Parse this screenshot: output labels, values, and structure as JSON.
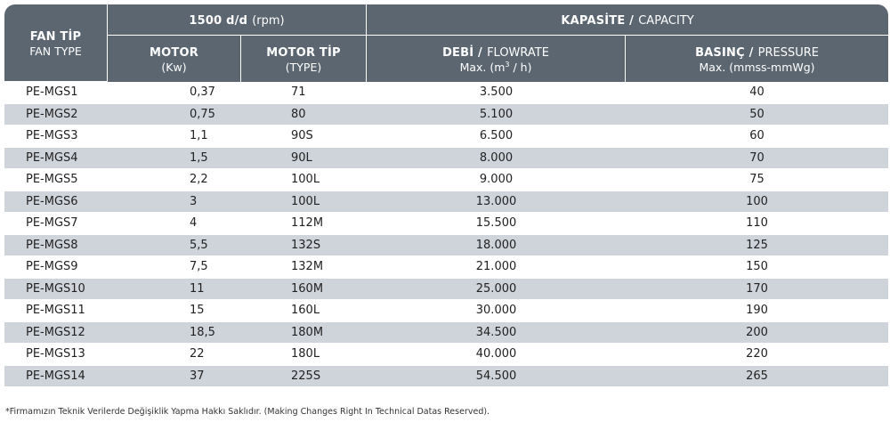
{
  "header": {
    "fan_type_bold": "FAN TİP",
    "fan_type_sub": "FAN TYPE",
    "rpm_bold": "1500 d/d",
    "rpm_normal": "(rpm)",
    "capacity_bold": "KAPASİTE /",
    "capacity_normal": "CAPACITY",
    "motor_bold": "MOTOR",
    "motor_sub": "(Kw)",
    "motor_type_bold": "MOTOR TİP",
    "motor_type_sub": "(TYPE)",
    "flow_bold": "DEBİ /",
    "flow_normal": "FLOWRATE",
    "flow_sub_pre": "Max. (m",
    "flow_sub_sup": "3",
    "flow_sub_post": " / h)",
    "pressure_bold": "BASINÇ /",
    "pressure_normal": "PRESSURE",
    "pressure_sub": "Max. (mmss-mmWg)"
  },
  "rows": [
    {
      "fan": "PE-MGS1",
      "motor": "0,37",
      "type": "71",
      "flow": "3.500",
      "pressure": "40"
    },
    {
      "fan": "PE-MGS2",
      "motor": "0,75",
      "type": "80",
      "flow": "5.100",
      "pressure": "50"
    },
    {
      "fan": "PE-MGS3",
      "motor": "1,1",
      "type": "90S",
      "flow": "6.500",
      "pressure": "60"
    },
    {
      "fan": "PE-MGS4",
      "motor": "1,5",
      "type": "90L",
      "flow": "8.000",
      "pressure": "70"
    },
    {
      "fan": "PE-MGS5",
      "motor": "2,2",
      "type": "100L",
      "flow": "9.000",
      "pressure": "75"
    },
    {
      "fan": "PE-MGS6",
      "motor": "3",
      "type": "100L",
      "flow": "13.000",
      "pressure": "100"
    },
    {
      "fan": "PE-MGS7",
      "motor": "4",
      "type": "112M",
      "flow": "15.500",
      "pressure": "110"
    },
    {
      "fan": "PE-MGS8",
      "motor": "5,5",
      "type": "132S",
      "flow": "18.000",
      "pressure": "125"
    },
    {
      "fan": "PE-MGS9",
      "motor": "7,5",
      "type": "132M",
      "flow": "21.000",
      "pressure": "150"
    },
    {
      "fan": "PE-MGS10",
      "motor": "11",
      "type": "160M",
      "flow": "25.000",
      "pressure": "170"
    },
    {
      "fan": "PE-MGS11",
      "motor": "15",
      "type": "160L",
      "flow": "30.000",
      "pressure": "190"
    },
    {
      "fan": "PE-MGS12",
      "motor": "18,5",
      "type": "180M",
      "flow": "34.500",
      "pressure": "200"
    },
    {
      "fan": "PE-MGS13",
      "motor": "22",
      "type": "180L",
      "flow": "40.000",
      "pressure": "220"
    },
    {
      "fan": "PE-MGS14",
      "motor": "37",
      "type": "225S",
      "flow": "54.500",
      "pressure": "265"
    }
  ],
  "footnote": "*Firmamızın Teknik Verilerde Değişiklik Yapma Hakkı Saklıdır. (Making Changes Right In Technical Datas Reserved).",
  "colors": {
    "header_bg": "#5b6670",
    "stripe": "#cfd3da"
  }
}
